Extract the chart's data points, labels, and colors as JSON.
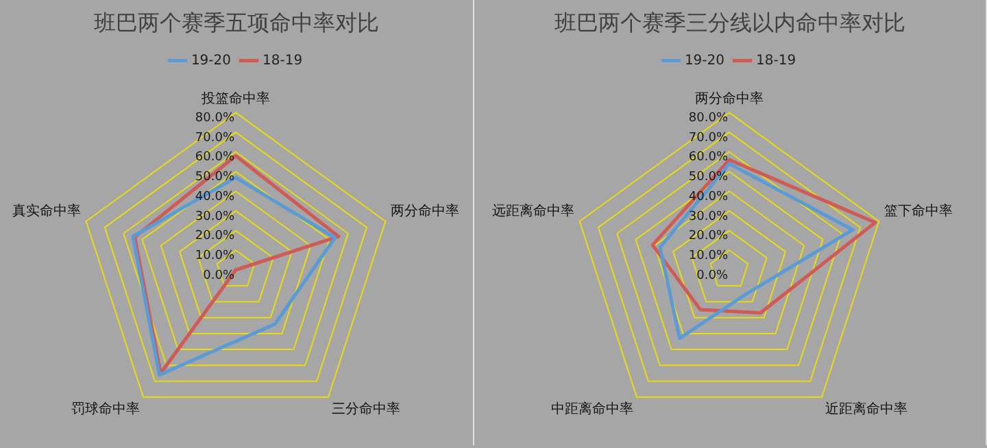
{
  "chart_data": [
    {
      "type": "radar",
      "title": "班巴两个赛季五项命中率对比",
      "categories": [
        "投篮命中率",
        "两分命中率",
        "三分命中率",
        "罚球命中率",
        "真实命中率"
      ],
      "series": [
        {
          "name": "19-20",
          "color": "#5b9bd5",
          "values": [
            47,
            53,
            34,
            66,
            55
          ]
        },
        {
          "name": "18-19",
          "color": "#d05a55",
          "values": [
            58,
            55,
            0,
            65,
            54
          ]
        }
      ],
      "ylim": [
        0,
        80
      ],
      "yticks": [
        {
          "value": 0,
          "label": "0.0%"
        },
        {
          "value": 10,
          "label": "10.0%"
        },
        {
          "value": 20,
          "label": "20.0%"
        },
        {
          "value": 30,
          "label": "30.0%"
        },
        {
          "value": 40,
          "label": "40.0%"
        },
        {
          "value": 50,
          "label": "50.0%"
        },
        {
          "value": 60,
          "label": "60.0%"
        },
        {
          "value": 70,
          "label": "70.0%"
        },
        {
          "value": 80,
          "label": "80.0%"
        }
      ],
      "grid": true,
      "legend": "top",
      "marker": "none"
    },
    {
      "type": "radar",
      "title": "班巴两个赛季三分线以内命中率对比",
      "categories": [
        "两分命中率",
        "篮下命中率",
        "近距离命中率",
        "中距离命中率",
        "远距离命中率"
      ],
      "series": [
        {
          "name": "19-20",
          "color": "#5b9bd5",
          "values": [
            54,
            66,
            15,
            43,
            37
          ]
        },
        {
          "name": "18-19",
          "color": "#d05a55",
          "values": [
            56,
            78,
            27,
            25,
            41
          ]
        }
      ],
      "ylim": [
        0,
        80
      ],
      "yticks": [
        {
          "value": 0,
          "label": "0.0%"
        },
        {
          "value": 10,
          "label": "10.0%"
        },
        {
          "value": 20,
          "label": "20.0%"
        },
        {
          "value": 30,
          "label": "30.0%"
        },
        {
          "value": 40,
          "label": "40.0%"
        },
        {
          "value": 50,
          "label": "50.0%"
        },
        {
          "value": 60,
          "label": "60.0%"
        },
        {
          "value": 70,
          "label": "70.0%"
        },
        {
          "value": 80,
          "label": "80.0%"
        }
      ],
      "grid": true,
      "legend": "top",
      "marker": "none"
    }
  ]
}
